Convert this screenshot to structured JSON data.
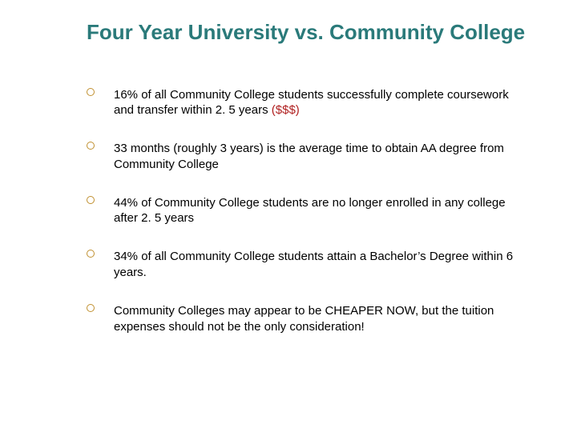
{
  "title": "Four Year University vs. Community College",
  "title_color": "#2a7a7a",
  "title_fontsize": 26,
  "bullet_marker_color": "#c09030",
  "body_fontsize": 15,
  "highlight_color": "#b02020",
  "background_color": "#ffffff",
  "bullets": [
    {
      "text_main": "16% of all Community College students successfully complete coursework and transfer within 2. 5 years ",
      "text_highlight": "($$$)"
    },
    {
      "text_main": "33 months (roughly 3 years) is the average time to obtain AA degree from Community College",
      "text_highlight": ""
    },
    {
      "text_main": "44% of Community College students are no longer enrolled in any college after 2. 5 years",
      "text_highlight": ""
    },
    {
      "text_main": "34% of all Community College students attain a Bachelor’s Degree within 6 years.",
      "text_highlight": ""
    },
    {
      "text_main": "Community Colleges may appear to be CHEAPER NOW, but the tuition expenses should not be the only consideration!",
      "text_highlight": ""
    }
  ]
}
